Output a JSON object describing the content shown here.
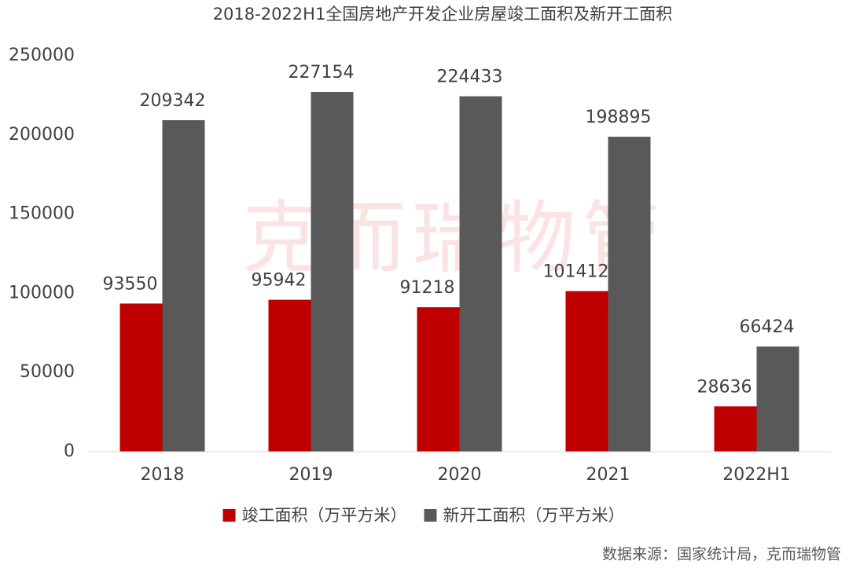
{
  "chart_data": {
    "type": "bar",
    "title": "2018-2022H1全国房地产开发企业房屋竣工面积及新开工面积",
    "categories": [
      "2018",
      "2019",
      "2020",
      "2021",
      "2022H1"
    ],
    "series": [
      {
        "name": "竣工面积（万平方米）",
        "color": "#c00000",
        "values": [
          93550,
          95942,
          91218,
          101412,
          28636
        ]
      },
      {
        "name": "新开工面积（万平方米）",
        "color": "#595959",
        "values": [
          209342,
          227154,
          224433,
          198895,
          66424
        ]
      }
    ],
    "ylim": [
      0,
      250000
    ],
    "yticks": [
      0,
      50000,
      100000,
      150000,
      200000,
      250000
    ],
    "grid": false,
    "legend": "bottom",
    "watermark": "克而瑞物管",
    "source": "数据来源：国家统计局，克而瑞物管"
  }
}
